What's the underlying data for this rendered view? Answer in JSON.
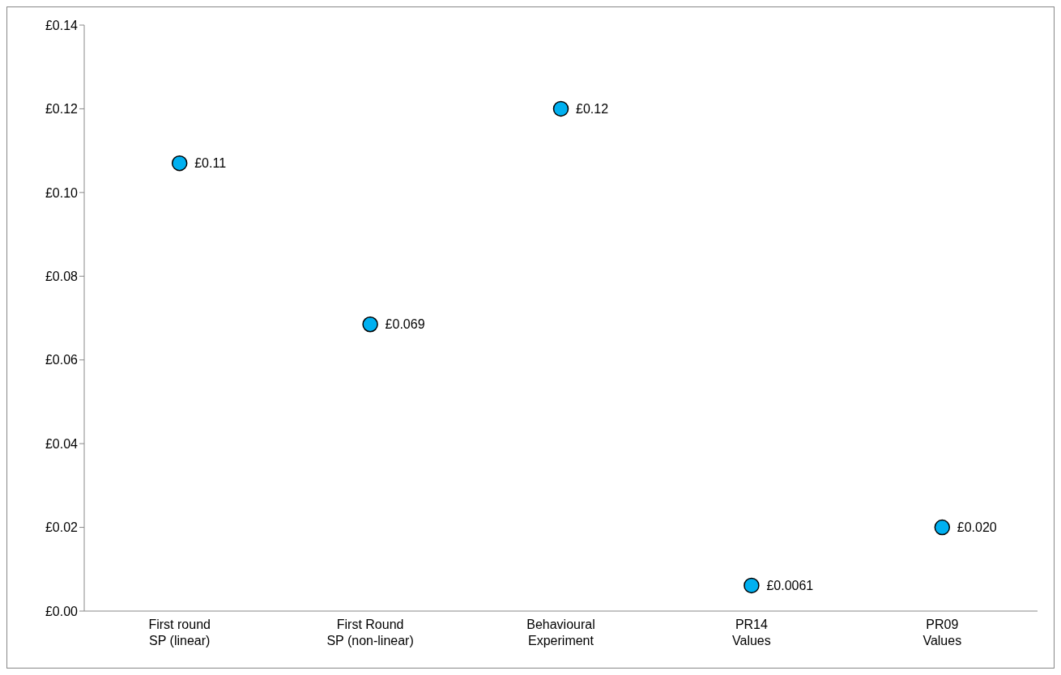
{
  "chart_data": {
    "type": "scatter",
    "categories": [
      "First round\nSP (linear)",
      "First Round\nSP (non-linear)",
      "Behavioural\nExperiment",
      "PR14\nValues",
      "PR09\nValues"
    ],
    "values": [
      0.107,
      0.0685,
      0.12,
      0.0061,
      0.02
    ],
    "value_labels": [
      "£0.11",
      "£0.069",
      "£0.12",
      "£0.0061",
      "£0.020"
    ],
    "color": "#00b0f0",
    "marker": "circle",
    "grid": false,
    "legend": false,
    "ylim": [
      0,
      0.14
    ],
    "yticks": [
      {
        "value": 0,
        "label": "£0.00"
      },
      {
        "value": 0.02,
        "label": "£0.02"
      },
      {
        "value": 0.04,
        "label": "£0.04"
      },
      {
        "value": 0.06,
        "label": "£0.06"
      },
      {
        "value": 0.08,
        "label": "£0.08"
      },
      {
        "value": 0.1,
        "label": "£0.10"
      },
      {
        "value": 0.12,
        "label": "£0.12"
      },
      {
        "value": 0.14,
        "label": "£0.14"
      }
    ]
  }
}
